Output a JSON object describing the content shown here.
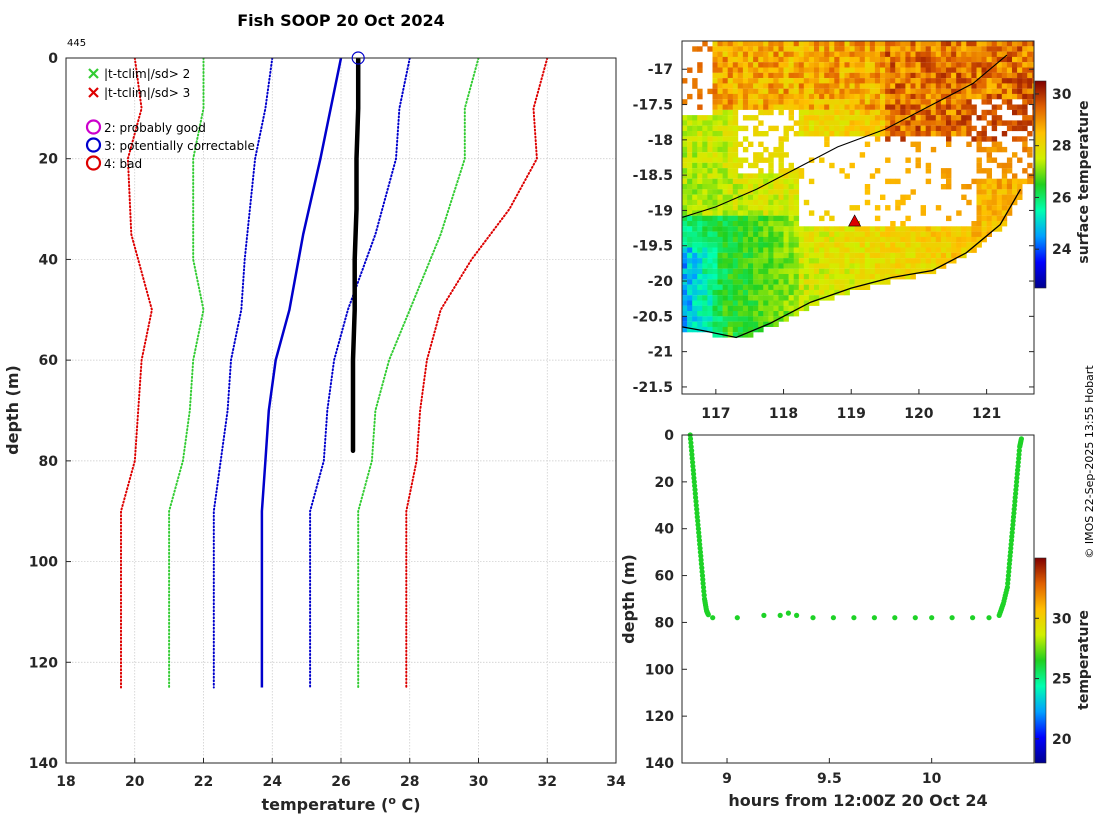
{
  "figure": {
    "title": "Fish SOOP 20 Oct 2024",
    "profile_count": "445",
    "credit": "© IMOS 22-Sep-2025 13:55 Hobart"
  },
  "colors": {
    "obs": "#000000",
    "clim": "#0000cc",
    "sd2": "#33cc33",
    "sd3": "#dd0000",
    "flag2": "#cc00cc",
    "flag3": "#0000cc",
    "flag4": "#dd0000"
  },
  "legend": {
    "x_green": "|t-tclim|/sd> 2",
    "x_red": "|t-tclim|/sd> 3",
    "flag2": "2: probably good",
    "flag3": "3: potentially correctable",
    "flag4": "4: bad"
  },
  "icons": [
    "cross-icon",
    "circle-icon",
    "triangle-icon"
  ],
  "chart_data": [
    {
      "type": "line",
      "name": "temperature-profile",
      "xlabel": "temperature (",
      "xlabel_sup": "o",
      "xlabel_tail": " C)",
      "ylabel": "depth (m)",
      "xlim": [
        18,
        34
      ],
      "ylim": [
        140,
        0
      ],
      "xticks": [
        18,
        20,
        22,
        24,
        26,
        28,
        30,
        32,
        34
      ],
      "yticks": [
        0,
        20,
        40,
        60,
        80,
        100,
        120,
        140
      ],
      "grid": true,
      "series": [
        {
          "name": "climatology mean",
          "style": "solid",
          "color_key": "clim",
          "points": [
            [
              26.0,
              0
            ],
            [
              25.4,
              20
            ],
            [
              24.9,
              35
            ],
            [
              24.5,
              50
            ],
            [
              24.1,
              60
            ],
            [
              23.9,
              70
            ],
            [
              23.8,
              80
            ],
            [
              23.7,
              90
            ],
            [
              23.7,
              125
            ]
          ]
        },
        {
          "name": "clim -1sd",
          "style": "dotted",
          "color_key": "clim",
          "points": [
            [
              24.0,
              0
            ],
            [
              23.8,
              10
            ],
            [
              23.5,
              20
            ],
            [
              23.2,
              40
            ],
            [
              23.1,
              50
            ],
            [
              22.8,
              60
            ],
            [
              22.7,
              70
            ],
            [
              22.5,
              80
            ],
            [
              22.3,
              90
            ],
            [
              22.3,
              125
            ]
          ]
        },
        {
          "name": "clim +1sd",
          "style": "dotted",
          "color_key": "clim",
          "points": [
            [
              28.0,
              0
            ],
            [
              27.7,
              10
            ],
            [
              27.6,
              20
            ],
            [
              27.0,
              35
            ],
            [
              26.2,
              50
            ],
            [
              25.8,
              60
            ],
            [
              25.6,
              70
            ],
            [
              25.5,
              80
            ],
            [
              25.1,
              90
            ],
            [
              25.1,
              125
            ]
          ]
        },
        {
          "name": "clim -2sd",
          "style": "dotted",
          "color_key": "sd2",
          "points": [
            [
              22.0,
              0
            ],
            [
              22.0,
              10
            ],
            [
              21.7,
              20
            ],
            [
              21.7,
              40
            ],
            [
              22.0,
              50
            ],
            [
              21.7,
              60
            ],
            [
              21.6,
              70
            ],
            [
              21.4,
              80
            ],
            [
              21.0,
              90
            ],
            [
              21.0,
              125
            ]
          ]
        },
        {
          "name": "clim +2sd",
          "style": "dotted",
          "color_key": "sd2",
          "points": [
            [
              30.0,
              0
            ],
            [
              29.6,
              10
            ],
            [
              29.6,
              20
            ],
            [
              28.9,
              35
            ],
            [
              28.0,
              50
            ],
            [
              27.4,
              60
            ],
            [
              27.0,
              70
            ],
            [
              26.9,
              80
            ],
            [
              26.5,
              90
            ],
            [
              26.5,
              125
            ]
          ]
        },
        {
          "name": "clim -3sd",
          "style": "dotted",
          "color_key": "sd3",
          "points": [
            [
              20.0,
              0
            ],
            [
              20.2,
              10
            ],
            [
              19.8,
              20
            ],
            [
              19.9,
              35
            ],
            [
              20.5,
              50
            ],
            [
              20.2,
              60
            ],
            [
              20.1,
              70
            ],
            [
              20.0,
              80
            ],
            [
              19.6,
              90
            ],
            [
              19.6,
              125
            ]
          ]
        },
        {
          "name": "clim +3sd",
          "style": "dotted",
          "color_key": "sd3",
          "points": [
            [
              32.0,
              0
            ],
            [
              31.6,
              10
            ],
            [
              31.7,
              20
            ],
            [
              30.9,
              30
            ],
            [
              29.8,
              40
            ],
            [
              28.9,
              50
            ],
            [
              28.5,
              60
            ],
            [
              28.3,
              70
            ],
            [
              28.2,
              80
            ],
            [
              27.9,
              90
            ],
            [
              27.9,
              125
            ]
          ]
        },
        {
          "name": "observed profile",
          "style": "thick",
          "color_key": "obs",
          "points": [
            [
              26.5,
              0
            ],
            [
              26.5,
              10
            ],
            [
              26.45,
              20
            ],
            [
              26.45,
              30
            ],
            [
              26.4,
              40
            ],
            [
              26.4,
              50
            ],
            [
              26.35,
              60
            ],
            [
              26.35,
              70
            ],
            [
              26.35,
              78
            ]
          ]
        }
      ],
      "marker": {
        "x": 26.5,
        "y": 0,
        "shape": "open-circle",
        "color_key": "flag3"
      }
    },
    {
      "type": "heatmap",
      "name": "sst-map",
      "xticks": [
        117,
        118,
        119,
        120,
        121
      ],
      "yticks": [
        -17,
        -17.5,
        -18,
        -18.5,
        -19,
        -19.5,
        -20,
        -20.5,
        -21,
        -21.5
      ],
      "ytick_labels": [
        "-17",
        "-17.5",
        "-18",
        "-18.5",
        "-19",
        "-19.5",
        "-20",
        "-20.5",
        "-21",
        "-21.5"
      ],
      "xlim": [
        116.5,
        121.7
      ],
      "ylim": [
        -21.6,
        -16.6
      ],
      "colorbar_label": "surface temperature",
      "colorbar_ticks": [
        24,
        26,
        28,
        30
      ],
      "colorbar_range": [
        22.5,
        30.5
      ],
      "coastline_approx": [
        [
          116.5,
          -20.65
        ],
        [
          116.8,
          -20.7
        ],
        [
          117.3,
          -20.8
        ],
        [
          117.8,
          -20.6
        ],
        [
          118.4,
          -20.3
        ],
        [
          119.0,
          -20.1
        ],
        [
          119.6,
          -19.95
        ],
        [
          120.2,
          -19.85
        ],
        [
          120.7,
          -19.6
        ],
        [
          121.2,
          -19.2
        ],
        [
          121.5,
          -18.7
        ]
      ],
      "shelf_contour_approx": [
        [
          116.5,
          -19.1
        ],
        [
          117.0,
          -18.95
        ],
        [
          117.6,
          -18.7
        ],
        [
          118.2,
          -18.4
        ],
        [
          118.8,
          -18.1
        ],
        [
          119.5,
          -17.85
        ],
        [
          120.2,
          -17.5
        ],
        [
          120.8,
          -17.2
        ],
        [
          121.3,
          -16.8
        ]
      ],
      "station": {
        "lon": 119.05,
        "lat": -19.15,
        "shape": "triangle",
        "color": "#dd0000"
      }
    },
    {
      "type": "scatter",
      "name": "depth-time",
      "xlabel": "hours from 12:00Z 20 Oct 24",
      "ylabel": "depth (m)",
      "xlim": [
        8.78,
        10.5
      ],
      "ylim": [
        140,
        0
      ],
      "xticks": [
        9,
        9.5,
        10
      ],
      "xtick_labels": [
        "9",
        "9.5",
        "10"
      ],
      "yticks": [
        0,
        20,
        40,
        60,
        80,
        100,
        120,
        140
      ],
      "colorbar_label": "temperature",
      "colorbar_ticks": [
        20,
        25,
        30
      ],
      "colorbar_range": [
        18,
        35
      ],
      "point_temperature": 26.4,
      "descent": [
        [
          8.82,
          0
        ],
        [
          8.83,
          10
        ],
        [
          8.84,
          20
        ],
        [
          8.85,
          30
        ],
        [
          8.86,
          40
        ],
        [
          8.87,
          50
        ],
        [
          8.88,
          60
        ],
        [
          8.89,
          70
        ],
        [
          8.9,
          75
        ],
        [
          8.91,
          77
        ]
      ],
      "bottom": [
        [
          8.93,
          78
        ],
        [
          9.05,
          78
        ],
        [
          9.18,
          77
        ],
        [
          9.26,
          77
        ],
        [
          9.3,
          76
        ],
        [
          9.34,
          77
        ],
        [
          9.42,
          78
        ],
        [
          9.52,
          78
        ],
        [
          9.62,
          78
        ],
        [
          9.72,
          78
        ],
        [
          9.82,
          78
        ],
        [
          9.92,
          78
        ],
        [
          10.0,
          78
        ],
        [
          10.1,
          78
        ],
        [
          10.2,
          78
        ],
        [
          10.28,
          78
        ]
      ],
      "ascent": [
        [
          10.33,
          77
        ],
        [
          10.35,
          72
        ],
        [
          10.37,
          65
        ],
        [
          10.38,
          55
        ],
        [
          10.39,
          45
        ],
        [
          10.4,
          35
        ],
        [
          10.41,
          25
        ],
        [
          10.42,
          15
        ],
        [
          10.43,
          5
        ],
        [
          10.44,
          1
        ]
      ]
    }
  ]
}
